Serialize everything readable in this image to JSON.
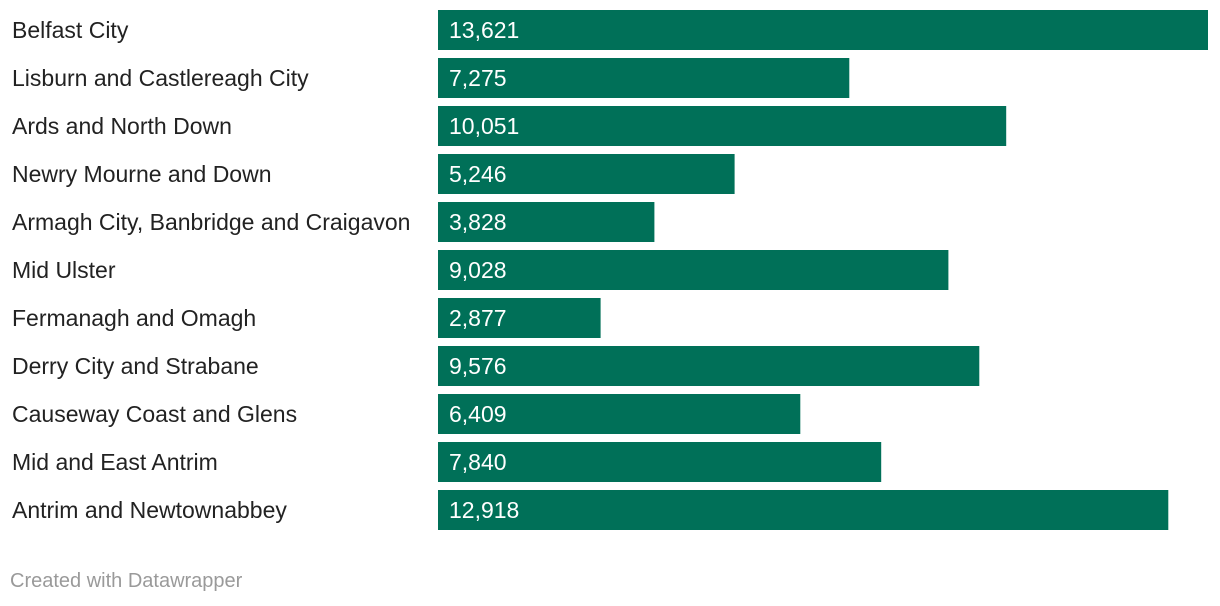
{
  "chart_data": {
    "type": "bar",
    "orientation": "horizontal",
    "title": "",
    "xlabel": "",
    "ylabel": "",
    "categories": [
      "Belfast City",
      "Lisburn and Castlereagh City",
      "Ards and North Down",
      "Newry Mourne and Down",
      "Armagh City, Banbridge and Craigavon",
      "Mid Ulster",
      "Fermanagh and Omagh",
      "Derry City and Strabane",
      "Causeway Coast and Glens",
      "Mid and East Antrim",
      "Antrim and Newtownabbey"
    ],
    "values": [
      13621,
      7275,
      10051,
      5246,
      3828,
      9028,
      2877,
      9576,
      6409,
      7840,
      12918
    ],
    "value_labels": [
      "13,621",
      "7,275",
      "10,051",
      "5,246",
      "3,828",
      "9,028",
      "2,877",
      "9,576",
      "6,409",
      "7,840",
      "12,918"
    ],
    "xlim": [
      0,
      13621
    ],
    "bar_color": "#007058",
    "grid": false,
    "legend": "none"
  },
  "footer": {
    "credit": "Created with Datawrapper"
  }
}
